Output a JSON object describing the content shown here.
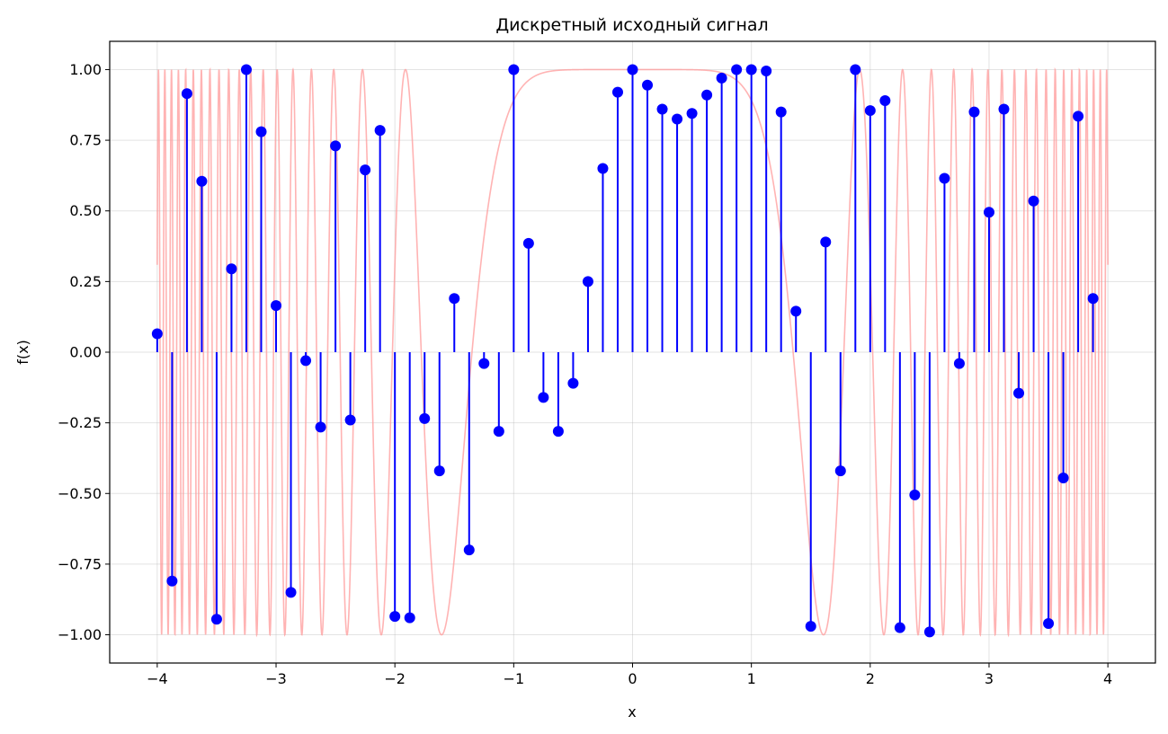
{
  "chart_data": {
    "type": "stem",
    "title": "Дискретный исходный сигнал",
    "xlabel": "x",
    "ylabel": "f(x)",
    "xlim": [
      -4.4,
      4.4
    ],
    "ylim": [
      -1.1,
      1.1
    ],
    "x_ticks": [
      -4,
      -3,
      -2,
      -1,
      0,
      1,
      2,
      3,
      4
    ],
    "x_tick_labels": [
      "−4",
      "−3",
      "−2",
      "−1",
      "0",
      "1",
      "2",
      "3",
      "4"
    ],
    "y_ticks": [
      -1.0,
      -0.75,
      -0.5,
      -0.25,
      0.0,
      0.25,
      0.5,
      0.75,
      1.0
    ],
    "y_tick_labels": [
      "−1.00",
      "−0.75",
      "−0.50",
      "−0.25",
      "0.00",
      "0.25",
      "0.50",
      "0.75",
      "1.00"
    ],
    "grid": true,
    "continuous_signal": {
      "color": "#ff9999",
      "opacity": 0.75,
      "x_range": [
        -4,
        4
      ]
    },
    "samples": {
      "stem_color": "#0000ff",
      "marker_color": "#0000ff",
      "x": [
        -4.0,
        -3.875,
        -3.75,
        -3.625,
        -3.5,
        -3.375,
        -3.25,
        -3.125,
        -3.0,
        -2.875,
        -2.75,
        -2.625,
        -2.5,
        -2.375,
        -2.25,
        -2.125,
        -2.0,
        -1.875,
        -1.75,
        -1.625,
        -1.5,
        -1.375,
        -1.25,
        -1.125,
        -1.0,
        -0.875,
        -0.75,
        -0.625,
        -0.5,
        -0.375,
        -0.25,
        -0.125,
        0.0,
        0.125,
        0.25,
        0.375,
        0.5,
        0.625,
        0.75,
        0.875,
        1.0,
        1.125,
        1.25,
        1.375,
        1.5,
        1.625,
        1.75,
        1.875,
        2.0,
        2.125,
        2.25,
        2.375,
        2.5,
        2.625,
        2.75,
        2.875,
        3.0,
        3.125,
        3.25,
        3.375,
        3.5,
        3.625,
        3.75,
        3.875
      ],
      "y": [
        0.065,
        -0.81,
        0.915,
        0.605,
        -0.945,
        0.295,
        1.0,
        0.78,
        0.165,
        -0.85,
        -0.03,
        -0.265,
        0.73,
        -0.24,
        0.645,
        0.785,
        -0.935,
        -0.94,
        -0.235,
        -0.42,
        0.19,
        -0.7,
        -0.04,
        -0.28,
        1.0,
        0.385,
        -0.16,
        -0.28,
        -0.11,
        0.25,
        0.65,
        0.92,
        1.0,
        0.945,
        0.86,
        0.825,
        0.845,
        0.91,
        0.97,
        1.0,
        1.0,
        0.995,
        0.85,
        0.145,
        -0.97,
        0.39,
        -0.42,
        1.0,
        0.855,
        0.89,
        -0.975,
        -0.505,
        -0.99,
        0.615,
        -0.04,
        0.85,
        0.495,
        0.86,
        -0.145,
        0.535,
        -0.96,
        -0.445,
        0.835,
        0.19
      ]
    }
  }
}
